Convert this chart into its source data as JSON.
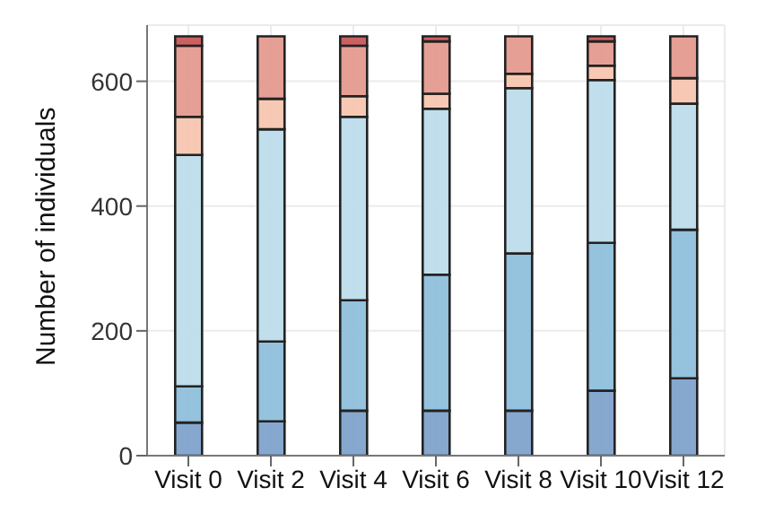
{
  "chart_data": {
    "type": "bar",
    "stacked": true,
    "ylabel": "Number of individuals",
    "categories": [
      "Visit 0",
      "Visit 2",
      "Visit 4",
      "Visit 6",
      "Visit 8",
      "Visit 10",
      "Visit 12"
    ],
    "series": [
      {
        "color": "#7fa3cc",
        "values": [
          53,
          55,
          72,
          72,
          72,
          104,
          124
        ]
      },
      {
        "color": "#8fbfdb",
        "values": [
          58,
          128,
          177,
          218,
          252,
          237,
          238
        ]
      },
      {
        "color": "#bddcea",
        "values": [
          371,
          340,
          294,
          266,
          265,
          261,
          202
        ]
      },
      {
        "color": "#f7c6b0",
        "values": [
          61,
          49,
          33,
          24,
          23,
          23,
          41
        ]
      },
      {
        "color": "#e49a8f",
        "values": [
          114,
          100,
          81,
          84,
          60,
          39,
          67
        ]
      },
      {
        "color": "#c9595a",
        "values": [
          15,
          0,
          15,
          8,
          0,
          8,
          0
        ]
      }
    ],
    "ylim": [
      0,
      690
    ],
    "yticks": [
      0,
      200,
      400,
      600
    ],
    "grid": true,
    "legend": false
  }
}
